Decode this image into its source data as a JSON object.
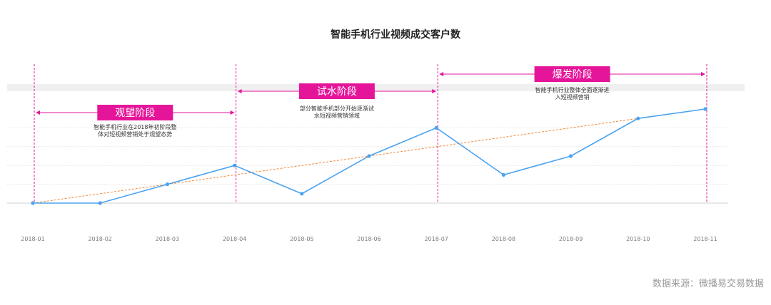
{
  "chart_data": {
    "type": "line",
    "title": "智能手机行业视频成交客户数",
    "categories": [
      "2018-01",
      "2018-02",
      "2018-03",
      "2018-04",
      "2018-05",
      "2018-06",
      "2018-07",
      "2018-08",
      "2018-09",
      "2018-10",
      "2018-11"
    ],
    "series": [
      {
        "values": [
          0,
          0,
          10,
          20,
          5,
          25,
          40,
          15,
          25,
          45,
          50
        ],
        "color": "#4aa3ef"
      }
    ],
    "trendline": {
      "from": 0,
      "to": 50,
      "color": "#f08a3c"
    },
    "ylim": [
      0,
      50
    ],
    "grid": true,
    "phases": [
      {
        "label": "观望阶段",
        "start": 0,
        "end": 3,
        "note_lines": [
          "智能手机行业在2018年初阶段整",
          "体对短视频营销处于观望态势"
        ]
      },
      {
        "label": "试水阶段",
        "start": 3,
        "end": 6,
        "note_lines": [
          "部分智能手机部分开始逐渐试",
          "水短视频营销领域"
        ]
      },
      {
        "label": "爆发阶段",
        "start": 6,
        "end": 10,
        "note_lines": [
          "智能手机行业整体全面逐渐进",
          "入短视频营销"
        ]
      }
    ],
    "accent_color": "#e5159a"
  },
  "source": "数据来源：微播易交易数据"
}
